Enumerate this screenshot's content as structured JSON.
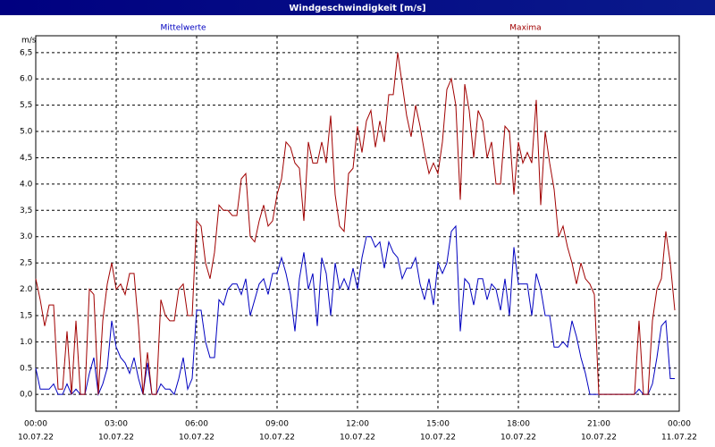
{
  "chart_data": {
    "type": "line",
    "title": "Windgeschwindigkeit [m/s]",
    "y_unit": "m/s",
    "grid": true,
    "xlim": [
      0,
      1440
    ],
    "ylim": [
      -0.32,
      6.82
    ],
    "xticks": [
      {
        "value": 0,
        "label": "00:00"
      },
      {
        "value": 180,
        "label": "03:00"
      },
      {
        "value": 360,
        "label": "06:00"
      },
      {
        "value": 540,
        "label": "09:00"
      },
      {
        "value": 720,
        "label": "12:00"
      },
      {
        "value": 900,
        "label": "15:00"
      },
      {
        "value": 1080,
        "label": "18:00"
      },
      {
        "value": 1260,
        "label": "21:00"
      },
      {
        "value": 1440,
        "label": "00:00"
      }
    ],
    "xtick_dates": [
      "10.07.22",
      "10.07.22",
      "10.07.22",
      "10.07.22",
      "10.07.22",
      "10.07.22",
      "10.07.22",
      "10.07.22",
      "11.07.22"
    ],
    "yticks": [
      {
        "value": 0,
        "label": "0,0"
      },
      {
        "value": 0.5,
        "label": "0.5"
      },
      {
        "value": 1,
        "label": "1.0"
      },
      {
        "value": 1.5,
        "label": "1,5"
      },
      {
        "value": 2,
        "label": "2.0"
      },
      {
        "value": 2.5,
        "label": "2,5"
      },
      {
        "value": 3,
        "label": "3.0"
      },
      {
        "value": 3.5,
        "label": "3,5"
      },
      {
        "value": 4,
        "label": "4.0"
      },
      {
        "value": 4.5,
        "label": "4,5"
      },
      {
        "value": 5,
        "label": "5.0"
      },
      {
        "value": 5.5,
        "label": "5,5"
      },
      {
        "value": 6,
        "label": "6.0"
      },
      {
        "value": 6.5,
        "label": "6,5"
      }
    ],
    "x": [
      0,
      10,
      20,
      30,
      40,
      50,
      60,
      70,
      80,
      90,
      100,
      110,
      120,
      130,
      140,
      150,
      160,
      170,
      180,
      190,
      200,
      210,
      220,
      230,
      240,
      250,
      260,
      270,
      280,
      290,
      300,
      310,
      320,
      330,
      340,
      350,
      360,
      370,
      380,
      390,
      400,
      410,
      420,
      430,
      440,
      450,
      460,
      470,
      480,
      490,
      500,
      510,
      520,
      530,
      540,
      550,
      560,
      570,
      580,
      590,
      600,
      610,
      620,
      630,
      640,
      650,
      660,
      670,
      680,
      690,
      700,
      710,
      720,
      730,
      740,
      750,
      760,
      770,
      780,
      790,
      800,
      810,
      820,
      830,
      840,
      850,
      860,
      870,
      880,
      890,
      900,
      910,
      920,
      930,
      940,
      950,
      960,
      970,
      980,
      990,
      1000,
      1010,
      1020,
      1030,
      1040,
      1050,
      1060,
      1070,
      1080,
      1090,
      1100,
      1110,
      1120,
      1130,
      1140,
      1150,
      1160,
      1170,
      1180,
      1190,
      1200,
      1210,
      1220,
      1230,
      1240,
      1250,
      1260,
      1270,
      1280,
      1290,
      1300,
      1310,
      1320,
      1330,
      1340,
      1350,
      1360,
      1370,
      1380,
      1390,
      1400,
      1410,
      1420,
      1430
    ],
    "series": [
      {
        "name": "Mittelwerte",
        "color": "#0000c0",
        "values": [
          0.5,
          0.1,
          0.1,
          0.1,
          0.2,
          0.0,
          0.0,
          0.2,
          0.0,
          0.1,
          0.0,
          0.0,
          0.4,
          0.7,
          0.0,
          0.2,
          0.5,
          1.4,
          0.9,
          0.7,
          0.6,
          0.4,
          0.7,
          0.3,
          0.0,
          0.6,
          0.0,
          0.0,
          0.2,
          0.1,
          0.1,
          0.0,
          0.3,
          0.7,
          0.1,
          0.3,
          1.6,
          1.6,
          1.0,
          0.7,
          0.7,
          1.8,
          1.7,
          2.0,
          2.1,
          2.1,
          1.9,
          2.2,
          1.5,
          1.8,
          2.1,
          2.2,
          1.9,
          2.3,
          2.3,
          2.6,
          2.3,
          1.9,
          1.2,
          2.2,
          2.7,
          2.0,
          2.3,
          1.3,
          2.6,
          2.3,
          1.5,
          2.5,
          2.0,
          2.2,
          2.0,
          2.4,
          2.0,
          2.6,
          3.0,
          3.0,
          2.8,
          2.9,
          2.4,
          2.9,
          2.7,
          2.6,
          2.2,
          2.4,
          2.4,
          2.6,
          2.1,
          1.8,
          2.2,
          1.7,
          2.5,
          2.3,
          2.5,
          3.1,
          3.2,
          1.2,
          2.2,
          2.1,
          1.7,
          2.2,
          2.2,
          1.8,
          2.1,
          2.0,
          1.6,
          2.2,
          1.5,
          2.8,
          2.1,
          2.1,
          2.1,
          1.5,
          2.3,
          2.0,
          1.5,
          1.5,
          0.9,
          0.9,
          1.0,
          0.9,
          1.4,
          1.1,
          0.7,
          0.4,
          0.0,
          0.0,
          0.0,
          0.0,
          0.0,
          0.0,
          0.0,
          0.0,
          0.0,
          0.0,
          0.0,
          0.1,
          0.0,
          0.0,
          0.2,
          0.7,
          1.3,
          1.4,
          0.3,
          0.3
        ]
      },
      {
        "name": "Maxima",
        "color": "#a00000",
        "values": [
          2.2,
          1.8,
          1.3,
          1.7,
          1.7,
          0.1,
          0.1,
          1.2,
          0.0,
          1.4,
          0.0,
          0.0,
          2.0,
          1.9,
          0.0,
          1.4,
          2.1,
          2.5,
          2.0,
          2.1,
          1.9,
          2.3,
          2.3,
          1.3,
          0.0,
          0.8,
          0.0,
          0.0,
          1.8,
          1.5,
          1.4,
          1.4,
          2.0,
          2.1,
          1.5,
          1.5,
          3.3,
          3.2,
          2.5,
          2.2,
          2.7,
          3.6,
          3.5,
          3.5,
          3.4,
          3.4,
          4.1,
          4.2,
          3.0,
          2.9,
          3.3,
          3.6,
          3.2,
          3.3,
          3.8,
          4.1,
          4.8,
          4.7,
          4.4,
          4.3,
          3.3,
          4.8,
          4.4,
          4.4,
          4.8,
          4.4,
          5.3,
          3.8,
          3.2,
          3.1,
          4.2,
          4.3,
          5.1,
          4.6,
          5.2,
          5.4,
          4.7,
          5.2,
          4.8,
          5.7,
          5.7,
          6.5,
          5.9,
          5.3,
          4.9,
          5.5,
          5.1,
          4.6,
          4.2,
          4.4,
          4.2,
          4.8,
          5.8,
          6.0,
          5.5,
          3.7,
          5.9,
          5.4,
          4.5,
          5.4,
          5.2,
          4.5,
          4.8,
          4.0,
          4.0,
          5.1,
          5.0,
          3.8,
          4.8,
          4.4,
          4.6,
          4.4,
          5.6,
          3.6,
          5.0,
          4.4,
          3.9,
          3.0,
          3.2,
          2.8,
          2.5,
          2.1,
          2.5,
          2.2,
          2.1,
          1.9,
          0.0,
          0.0,
          0.0,
          0.0,
          0.0,
          0.0,
          0.0,
          0.0,
          0.0,
          1.4,
          0.0,
          0.0,
          1.4,
          2.0,
          2.2,
          3.1,
          2.5,
          1.6
        ]
      }
    ]
  }
}
